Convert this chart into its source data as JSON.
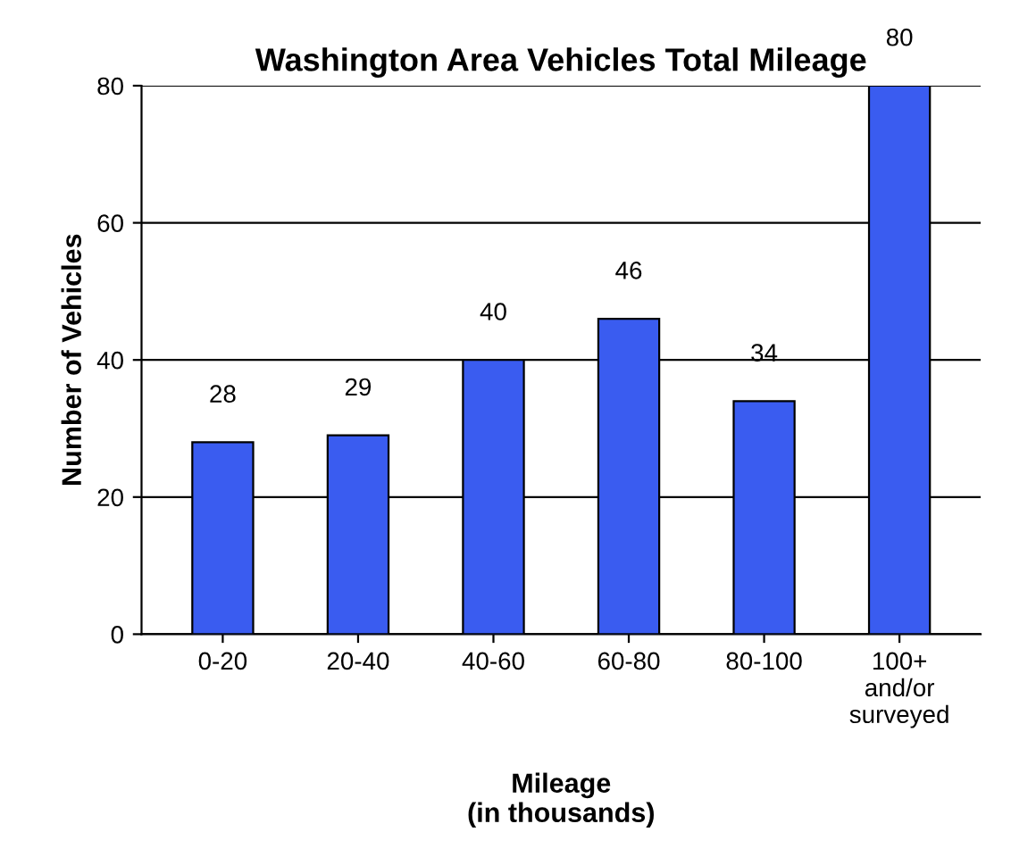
{
  "chart_data": {
    "type": "bar",
    "title": "Washington Area Vehicles Total Mileage",
    "xlabel": "Mileage\n(in thousands)",
    "ylabel": "Number of Vehicles",
    "categories": [
      "0-20",
      "20-40",
      "40-60",
      "60-80",
      "80-100",
      "100+\nand/or\nsurveyed"
    ],
    "values": [
      28,
      29,
      40,
      46,
      34,
      80
    ],
    "color": "#3a5cf0",
    "ylim": [
      0,
      80
    ],
    "yticks": [
      0,
      20,
      40,
      60,
      80
    ],
    "grid": "y",
    "data_labels": true
  }
}
